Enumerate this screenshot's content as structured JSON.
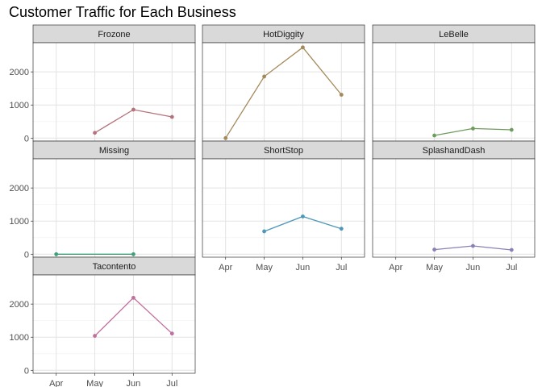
{
  "chart_data": {
    "type": "line",
    "title": "Customer Traffic for Each Business",
    "xlabel": "",
    "ylabel": "",
    "categories": [
      "Apr",
      "May",
      "Jun",
      "Jul"
    ],
    "ylim": [
      -90,
      2880
    ],
    "yticks": [
      0,
      1000,
      2000
    ],
    "grid": true,
    "facet_layout": {
      "columns": 3,
      "rows": 3
    },
    "panels": [
      {
        "name": "Frozone",
        "color": "#b5727a",
        "points": [
          {
            "x": "May",
            "y": 160
          },
          {
            "x": "Jun",
            "y": 860
          },
          {
            "x": "Jul",
            "y": 640
          }
        ]
      },
      {
        "name": "HotDiggity",
        "color": "#a48a5a",
        "points": [
          {
            "x": "Apr",
            "y": 0
          },
          {
            "x": "May",
            "y": 1860
          },
          {
            "x": "Jun",
            "y": 2740
          },
          {
            "x": "Jul",
            "y": 1310
          }
        ]
      },
      {
        "name": "LeBelle",
        "color": "#6f9b5e",
        "points": [
          {
            "x": "May",
            "y": 80
          },
          {
            "x": "Jun",
            "y": 290
          },
          {
            "x": "Jul",
            "y": 250
          }
        ]
      },
      {
        "name": "Missing",
        "color": "#3e9f78",
        "points": [
          {
            "x": "Apr",
            "y": 0
          },
          {
            "x": "Jun",
            "y": 0
          }
        ]
      },
      {
        "name": "ShortStop",
        "color": "#4d97b8",
        "points": [
          {
            "x": "May",
            "y": 690
          },
          {
            "x": "Jun",
            "y": 1140
          },
          {
            "x": "Jul",
            "y": 770
          }
        ]
      },
      {
        "name": "SplashandDash",
        "color": "#8881b5",
        "points": [
          {
            "x": "May",
            "y": 140
          },
          {
            "x": "Jun",
            "y": 250
          },
          {
            "x": "Jul",
            "y": 130
          }
        ]
      },
      {
        "name": "Tacontento",
        "color": "#c26f9e",
        "points": [
          {
            "x": "May",
            "y": 1040
          },
          {
            "x": "Jun",
            "y": 2190
          },
          {
            "x": "Jul",
            "y": 1110
          }
        ]
      }
    ]
  }
}
